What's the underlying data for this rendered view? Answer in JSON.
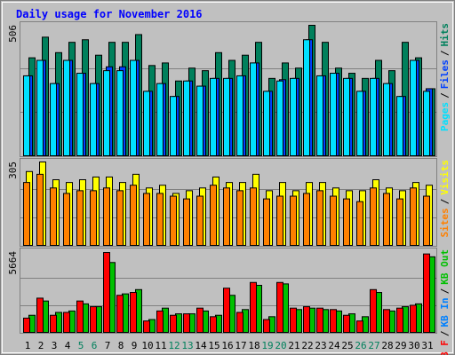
{
  "title": "Daily usage for November 2016",
  "legend_separator": "/",
  "chart_data": [
    {
      "type": "bar",
      "ylim": [
        0,
        506
      ],
      "yticks": [
        506
      ],
      "series": [
        {
          "name": "Hits",
          "color": "#00805C",
          "values": [
            380,
            460,
            400,
            440,
            450,
            390,
            440,
            440,
            470,
            350,
            360,
            290,
            340,
            330,
            400,
            370,
            390,
            440,
            300,
            360,
            340,
            506,
            440,
            340,
            320,
            300,
            370,
            330,
            440,
            380,
            260
          ]
        },
        {
          "name": "Files",
          "color": "#0040FF",
          "values": [
            310,
            370,
            280,
            370,
            320,
            280,
            345,
            345,
            370,
            250,
            280,
            230,
            290,
            270,
            300,
            300,
            310,
            360,
            250,
            295,
            300,
            450,
            310,
            320,
            300,
            250,
            300,
            280,
            230,
            370,
            260
          ]
        },
        {
          "name": "Pages",
          "color": "#00E0FF",
          "values": [
            310,
            370,
            280,
            370,
            320,
            280,
            330,
            330,
            370,
            250,
            280,
            230,
            290,
            270,
            300,
            300,
            310,
            360,
            250,
            290,
            300,
            450,
            310,
            320,
            300,
            250,
            300,
            280,
            230,
            370,
            250
          ]
        }
      ]
    },
    {
      "type": "bar",
      "ylim": [
        0,
        305
      ],
      "yticks": [
        305
      ],
      "series": [
        {
          "name": "Visits",
          "color": "#FFFF00",
          "values": [
            270,
            305,
            240,
            230,
            240,
            250,
            250,
            230,
            260,
            210,
            220,
            190,
            200,
            210,
            250,
            230,
            230,
            260,
            200,
            230,
            200,
            230,
            230,
            210,
            200,
            200,
            240,
            210,
            200,
            230,
            220
          ]
        },
        {
          "name": "Sites",
          "color": "#FF8000",
          "values": [
            230,
            260,
            210,
            190,
            200,
            200,
            210,
            200,
            220,
            190,
            190,
            180,
            170,
            180,
            220,
            210,
            200,
            210,
            170,
            180,
            180,
            190,
            200,
            180,
            170,
            160,
            210,
            190,
            170,
            210,
            180
          ]
        }
      ]
    },
    {
      "type": "bar",
      "ylim": [
        0,
        5664
      ],
      "yticks": [
        5664
      ],
      "categories": [
        "1",
        "2",
        "3",
        "4",
        "5",
        "6",
        "7",
        "8",
        "9",
        "10",
        "11",
        "12",
        "13",
        "14",
        "15",
        "16",
        "17",
        "18",
        "19",
        "20",
        "21",
        "22",
        "23",
        "24",
        "25",
        "26",
        "27",
        "28",
        "29",
        "30",
        "31"
      ],
      "category_colors": [
        "#000000",
        "#000000",
        "#000000",
        "#000000",
        "#00805C",
        "#00805C",
        "#000000",
        "#000000",
        "#000000",
        "#000000",
        "#000000",
        "#00805C",
        "#00805C",
        "#000000",
        "#000000",
        "#000000",
        "#000000",
        "#000000",
        "#00805C",
        "#00805C",
        "#000000",
        "#000000",
        "#000000",
        "#000000",
        "#000000",
        "#00805C",
        "#00805C",
        "#000000",
        "#000000",
        "#000000",
        "#000000"
      ],
      "series": [
        {
          "name": "KB Out",
          "color": "#00C000",
          "values": [
            1200,
            2200,
            1400,
            1500,
            2000,
            1800,
            4900,
            2700,
            3000,
            900,
            1700,
            1300,
            1300,
            1500,
            1200,
            2600,
            1600,
            3300,
            1100,
            3400,
            1600,
            1700,
            1600,
            1500,
            1300,
            1100,
            2800,
            1500,
            1800,
            2000,
            5300
          ]
        },
        {
          "name": "KB In",
          "color": "#0080FF",
          "values": [
            null,
            null,
            null,
            null,
            null,
            null,
            null,
            null,
            null,
            null,
            null,
            null,
            null,
            null,
            null,
            null,
            null,
            null,
            null,
            null,
            null,
            null,
            null,
            null,
            null,
            null,
            null,
            null,
            null,
            null,
            null
          ]
        },
        {
          "name": "KB F",
          "color": "#FF0000",
          "values": [
            1000,
            2400,
            1200,
            1400,
            2200,
            1800,
            5600,
            2600,
            2800,
            800,
            1500,
            1200,
            1300,
            1700,
            1100,
            3100,
            1400,
            3500,
            900,
            3500,
            1700,
            1800,
            1700,
            1600,
            1200,
            800,
            3000,
            1600,
            1700,
            1900,
            5500
          ]
        }
      ]
    }
  ]
}
